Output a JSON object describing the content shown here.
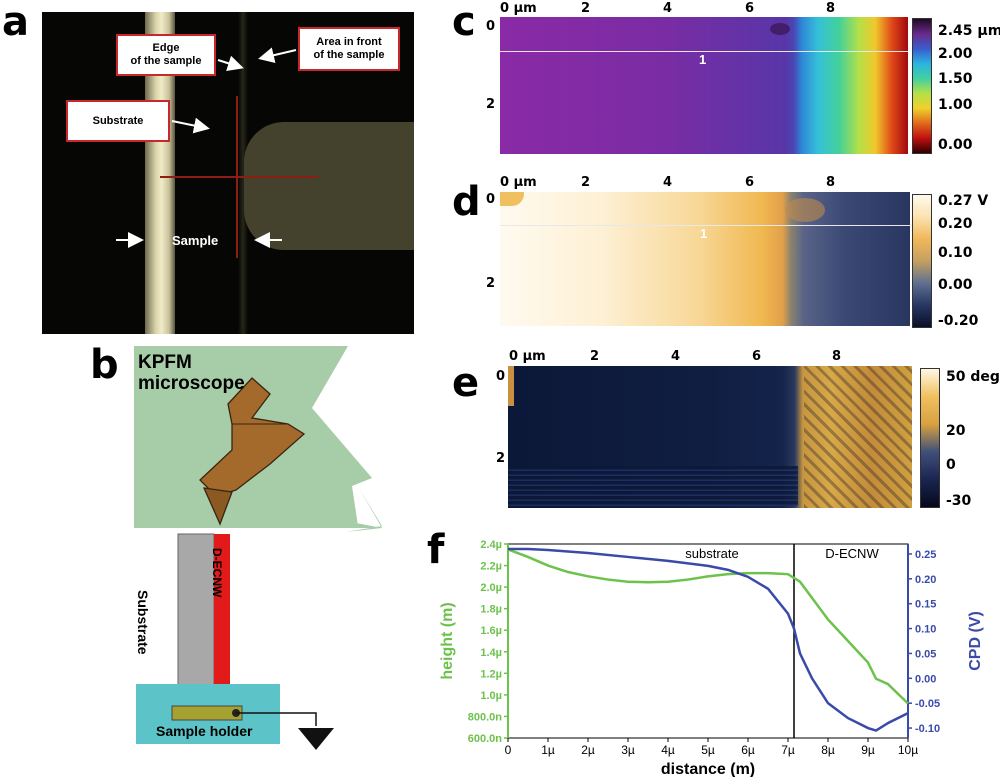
{
  "panels": {
    "a": {
      "label": "a",
      "callouts": {
        "edge": [
          "Edge",
          "of the sample"
        ],
        "area": [
          "Area in front",
          "of the sample"
        ],
        "substrate": "Substrate"
      },
      "sample_label": "Sample"
    },
    "b": {
      "label": "b",
      "microscope": [
        "KPFM",
        "microscope"
      ],
      "substrate": "Substrate",
      "decnw": "D-ECNW",
      "holder": "Sample holder"
    },
    "c": {
      "label": "c",
      "x_ticks": [
        "0 µm",
        "2",
        "4",
        "6",
        "8"
      ],
      "y_ticks": [
        "0",
        "2"
      ],
      "line_label": "1",
      "colorbar": [
        "2.45 µm",
        "2.00",
        "1.50",
        "1.00",
        "0.00"
      ],
      "colorbar_colors": [
        "#1e0a22",
        "#6a2a8c",
        "#3a5ccc",
        "#2ab4e0",
        "#42d0a0",
        "#b4e048",
        "#f0d02c",
        "#e06a1c",
        "#c01010",
        "#300000"
      ]
    },
    "d": {
      "label": "d",
      "x_ticks": [
        "0 µm",
        "2",
        "4",
        "6",
        "8"
      ],
      "y_ticks": [
        "0",
        "2"
      ],
      "line_label": "1",
      "colorbar": [
        "0.27 V",
        "0.20",
        "0.10",
        "0.00",
        "-0.20"
      ],
      "colorbar_colors": [
        "#fffaee",
        "#fbe2b0",
        "#f0b85a",
        "#c4a060",
        "#607090",
        "#283664",
        "#0a0f28"
      ]
    },
    "e": {
      "label": "e",
      "x_ticks": [
        "0 µm",
        "2",
        "4",
        "6",
        "8"
      ],
      "y_ticks": [
        "0",
        "2"
      ],
      "colorbar": [
        "50 deg",
        "20",
        "0",
        "-30"
      ],
      "colorbar_colors": [
        "#fff8e4",
        "#f0c060",
        "#d8a040",
        "#40507a",
        "#1a2550",
        "#05081c"
      ]
    },
    "f": {
      "label": "f"
    }
  },
  "chart_data": {
    "type": "line",
    "xlabel": "distance (m)",
    "ylabel": "height (m)",
    "ylabel_right": "CPD (V)",
    "x_ticks": [
      "0",
      "1µ",
      "2µ",
      "3µ",
      "4µ",
      "5µ",
      "6µ",
      "7µ",
      "8µ",
      "9µ",
      "10µ"
    ],
    "y_ticks": [
      "600.0n",
      "800.0n",
      "1.0µ",
      "1.2µ",
      "1.4µ",
      "1.6µ",
      "1.8µ",
      "2.0µ",
      "2.2µ",
      "2.4µ"
    ],
    "y2_ticks": [
      "-0.10",
      "-0.05",
      "0.00",
      "0.05",
      "0.10",
      "0.15",
      "0.20",
      "0.25"
    ],
    "xlim": [
      0,
      10
    ],
    "ylim": [
      0.6,
      2.4
    ],
    "y2lim": [
      -0.12,
      0.27
    ],
    "divider_x": 7.15,
    "region_labels": [
      "substrate",
      "D-ECNW"
    ],
    "series": [
      {
        "name": "height (m)",
        "axis": "left",
        "color": "#6cc24a",
        "x": [
          0,
          0.5,
          1,
          1.5,
          2,
          2.5,
          3,
          3.5,
          4,
          4.5,
          5,
          5.5,
          6,
          6.5,
          7,
          7.3,
          7.6,
          8,
          8.5,
          9,
          9.2,
          9.5,
          10
        ],
        "y": [
          2.35,
          2.28,
          2.2,
          2.14,
          2.1,
          2.07,
          2.05,
          2.045,
          2.05,
          2.07,
          2.1,
          2.12,
          2.13,
          2.13,
          2.12,
          2.05,
          1.9,
          1.7,
          1.5,
          1.3,
          1.15,
          1.1,
          0.92
        ]
      },
      {
        "name": "CPD (V)",
        "axis": "right",
        "color": "#3a4aa8",
        "x": [
          0,
          0.5,
          1,
          2,
          3,
          4,
          5,
          5.5,
          6,
          6.5,
          7,
          7.15,
          7.3,
          7.6,
          8,
          8.5,
          9,
          9.2,
          9.5,
          10
        ],
        "y": [
          0.26,
          0.26,
          0.258,
          0.252,
          0.244,
          0.236,
          0.226,
          0.218,
          0.204,
          0.18,
          0.13,
          0.1,
          0.05,
          0.0,
          -0.05,
          -0.08,
          -0.1,
          -0.105,
          -0.09,
          -0.07
        ]
      }
    ]
  }
}
